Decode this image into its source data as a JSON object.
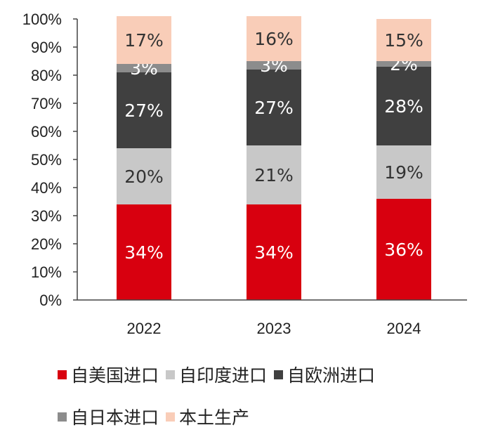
{
  "chart_data": {
    "type": "bar",
    "stacked": true,
    "categories": [
      "2022",
      "2023",
      "2024"
    ],
    "series": [
      {
        "name": "自美国进口",
        "values": [
          34,
          34,
          36
        ],
        "labels": [
          "34%",
          "34%",
          "36%"
        ],
        "color": "#d8000f",
        "label_color": "#ffffff"
      },
      {
        "name": "自印度进口",
        "values": [
          20,
          21,
          19
        ],
        "labels": [
          "20%",
          "21%",
          "19%"
        ],
        "color": "#c8c8c8",
        "label_color": "#333333"
      },
      {
        "name": "自欧洲进口",
        "values": [
          27,
          27,
          28
        ],
        "labels": [
          "27%",
          "27%",
          "28%"
        ],
        "color": "#404040",
        "label_color": "#ffffff"
      },
      {
        "name": "自日本进口",
        "values": [
          3,
          3,
          2
        ],
        "labels": [
          "3%",
          "3%",
          "2%"
        ],
        "color": "#8c8c8c",
        "label_color": "#ffffff"
      },
      {
        "name": "本土生产",
        "values": [
          17,
          16,
          15
        ],
        "labels": [
          "17%",
          "16%",
          "15%"
        ],
        "color": "#f9cdb8",
        "label_color": "#333333"
      }
    ],
    "y_ticks": [
      "0%",
      "10%",
      "20%",
      "30%",
      "40%",
      "50%",
      "60%",
      "70%",
      "80%",
      "90%",
      "100%"
    ],
    "ylim": [
      0,
      100
    ],
    "grid": false,
    "legend_position": "bottom"
  }
}
